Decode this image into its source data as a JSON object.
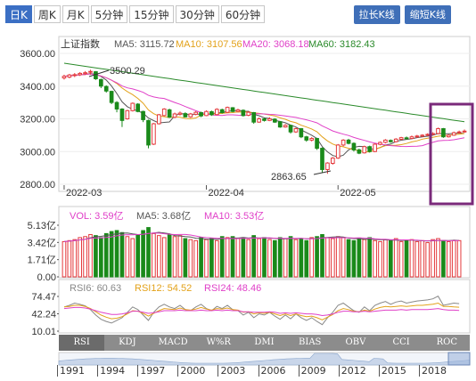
{
  "toolbar": {
    "periods": [
      "日K",
      "周K",
      "月K",
      "5分钟",
      "15分钟",
      "30分钟",
      "60分钟"
    ],
    "active_period": 0,
    "zoom_in_label": "拉长K线",
    "zoom_out_label": "缩短K线"
  },
  "legend": {
    "name": "上证指数",
    "ma5": "MA5: 3115.72",
    "ma10": "MA10: 3107.56",
    "ma20": "MA20: 3068.18",
    "ma60": "MA60: 3182.43"
  },
  "colors": {
    "up": "#e4393c",
    "down": "#1a8a1a",
    "ma5": "#555555",
    "ma10": "#e3a21a",
    "ma20": "#e040c8",
    "ma60": "#2a8a2a",
    "highlight": "#7a2a7a"
  },
  "chart_data": {
    "type": "candlestick",
    "x_ticks": [
      "2022-03",
      "2022-04",
      "2022-05"
    ],
    "y_ticks": [
      "3600.00",
      "3400.00",
      "3200.00",
      "3000.00",
      "2800.00"
    ],
    "ylim": [
      2800,
      3600
    ],
    "high_annotation": "3500.29",
    "low_annotation": "2863.65",
    "candles": [
      [
        3450,
        3460,
        3470,
        3440
      ],
      [
        3455,
        3468,
        3475,
        3448
      ],
      [
        3466,
        3470,
        3480,
        3455
      ],
      [
        3470,
        3478,
        3486,
        3462
      ],
      [
        3476,
        3482,
        3492,
        3468
      ],
      [
        3485,
        3490,
        3500,
        3470
      ],
      [
        3488,
        3445,
        3492,
        3438
      ],
      [
        3440,
        3400,
        3446,
        3388
      ],
      [
        3398,
        3370,
        3405,
        3360
      ],
      [
        3368,
        3300,
        3372,
        3290
      ],
      [
        3300,
        3260,
        3308,
        3240
      ],
      [
        3260,
        3190,
        3265,
        3150
      ],
      [
        3200,
        3250,
        3255,
        3195
      ],
      [
        3250,
        3295,
        3300,
        3245
      ],
      [
        3290,
        3245,
        3296,
        3240
      ],
      [
        3245,
        3195,
        3250,
        3180
      ],
      [
        3190,
        3040,
        3195,
        3020
      ],
      [
        3045,
        3170,
        3175,
        3040
      ],
      [
        3170,
        3225,
        3230,
        3165
      ],
      [
        3220,
        3260,
        3265,
        3215
      ],
      [
        3255,
        3210,
        3262,
        3205
      ],
      [
        3210,
        3230,
        3238,
        3204
      ],
      [
        3228,
        3235,
        3245,
        3220
      ],
      [
        3232,
        3212,
        3240,
        3208
      ],
      [
        3212,
        3230,
        3236,
        3206
      ],
      [
        3228,
        3240,
        3248,
        3222
      ],
      [
        3238,
        3218,
        3244,
        3210
      ],
      [
        3220,
        3245,
        3252,
        3216
      ],
      [
        3244,
        3225,
        3250,
        3218
      ],
      [
        3226,
        3258,
        3265,
        3222
      ],
      [
        3256,
        3238,
        3262,
        3232
      ],
      [
        3240,
        3270,
        3275,
        3235
      ],
      [
        3268,
        3245,
        3272,
        3240
      ],
      [
        3246,
        3255,
        3262,
        3240
      ],
      [
        3252,
        3220,
        3258,
        3214
      ],
      [
        3222,
        3240,
        3246,
        3216
      ],
      [
        3238,
        3180,
        3242,
        3170
      ],
      [
        3180,
        3200,
        3208,
        3176
      ],
      [
        3200,
        3190,
        3206,
        3184
      ],
      [
        3190,
        3200,
        3210,
        3186
      ],
      [
        3198,
        3180,
        3204,
        3175
      ],
      [
        3182,
        3150,
        3186,
        3145
      ],
      [
        3150,
        3160,
        3168,
        3146
      ],
      [
        3160,
        3120,
        3164,
        3110
      ],
      [
        3120,
        3140,
        3146,
        3114
      ],
      [
        3140,
        3090,
        3144,
        3082
      ],
      [
        3090,
        3070,
        3096,
        3060
      ],
      [
        3070,
        3080,
        3088,
        3062
      ],
      [
        3080,
        3020,
        3084,
        3010
      ],
      [
        3020,
        2890,
        3025,
        2870
      ],
      [
        2890,
        2930,
        2935,
        2864
      ],
      [
        2928,
        2960,
        2966,
        2920
      ],
      [
        2960,
        3040,
        3046,
        2955
      ],
      [
        3040,
        3070,
        3076,
        3032
      ],
      [
        3070,
        3050,
        3078,
        3044
      ],
      [
        3050,
        3010,
        3056,
        3000
      ],
      [
        3010,
        2990,
        3018,
        2984
      ],
      [
        2992,
        3030,
        3036,
        2988
      ],
      [
        3030,
        3000,
        3036,
        2994
      ],
      [
        3000,
        3045,
        3050,
        2996
      ],
      [
        3044,
        3056,
        3062,
        3038
      ],
      [
        3056,
        3070,
        3076,
        3050
      ],
      [
        3068,
        3060,
        3074,
        3054
      ],
      [
        3060,
        3076,
        3082,
        3056
      ],
      [
        3075,
        3085,
        3090,
        3068
      ],
      [
        3084,
        3080,
        3092,
        3076
      ],
      [
        3080,
        3090,
        3098,
        3076
      ],
      [
        3090,
        3095,
        3102,
        3084
      ],
      [
        3094,
        3100,
        3106,
        3090
      ],
      [
        3100,
        3105,
        3112,
        3095
      ],
      [
        3104,
        3110,
        3118,
        3100
      ],
      [
        3110,
        3140,
        3146,
        3106
      ],
      [
        3140,
        3090,
        3144,
        3084
      ],
      [
        3090,
        3100,
        3106,
        3086
      ],
      [
        3100,
        3115,
        3122,
        3096
      ],
      [
        3115,
        3120,
        3128,
        3110
      ],
      [
        3120,
        3125,
        3135,
        3115
      ]
    ],
    "volume": {
      "legend": {
        "vol": "VOL: 3.59亿",
        "ma5": "MA5: 3.68亿",
        "ma10": "MA10: 3.53亿"
      },
      "y_ticks": [
        "5.13亿",
        "3.42亿",
        "1.71亿",
        "0.00"
      ],
      "ylim": [
        0,
        5.13
      ],
      "values": [
        3.5,
        3.6,
        3.7,
        3.9,
        4.0,
        4.2,
        4.1,
        3.9,
        4.3,
        4.5,
        4.6,
        4.4,
        4.0,
        3.8,
        4.2,
        4.6,
        4.9,
        4.3,
        4.1,
        3.9,
        4.2,
        4.0,
        4.1,
        3.8,
        3.7,
        3.6,
        3.9,
        3.7,
        3.8,
        3.6,
        4.0,
        3.9,
        4.0,
        3.8,
        3.9,
        3.7,
        4.1,
        3.8,
        3.9,
        3.7,
        3.6,
        3.9,
        3.8,
        4.0,
        3.7,
        3.8,
        3.6,
        3.9,
        4.0,
        4.2,
        3.9,
        3.8,
        4.0,
        3.9,
        3.7,
        3.6,
        3.8,
        3.7,
        3.9,
        3.6,
        3.5,
        3.7,
        3.6,
        3.8,
        3.5,
        3.6,
        3.7,
        3.5,
        3.6,
        3.4,
        3.7,
        3.8,
        3.6,
        3.5,
        3.6,
        3.6
      ]
    },
    "rsi": {
      "legend": {
        "rsi6": "RSI6: 60.63",
        "rsi12": "RSI12: 54.52",
        "rsi24": "RSI24: 48.46"
      },
      "y_ticks": [
        "74.47",
        "42.24",
        "10.01"
      ],
      "ylim": [
        10.01,
        74.47
      ],
      "rsi6": [
        55,
        58,
        62,
        60,
        57,
        50,
        40,
        32,
        28,
        25,
        30,
        35,
        45,
        55,
        50,
        40,
        30,
        45,
        55,
        60,
        55,
        52,
        58,
        50,
        48,
        55,
        60,
        52,
        48,
        56,
        52,
        58,
        50,
        48,
        40,
        45,
        35,
        42,
        40,
        45,
        38,
        32,
        40,
        33,
        42,
        35,
        30,
        35,
        28,
        22,
        35,
        45,
        58,
        62,
        55,
        48,
        45,
        55,
        48,
        58,
        62,
        65,
        60,
        64,
        66,
        62,
        64,
        66,
        67,
        68,
        70,
        75,
        58,
        60,
        62,
        61
      ],
      "rsi12": [
        55,
        56,
        58,
        58,
        56,
        52,
        46,
        40,
        36,
        33,
        34,
        37,
        42,
        48,
        47,
        43,
        38,
        43,
        48,
        52,
        51,
        50,
        53,
        50,
        49,
        51,
        54,
        51,
        49,
        52,
        51,
        53,
        50,
        49,
        45,
        46,
        42,
        44,
        43,
        45,
        42,
        39,
        42,
        39,
        42,
        39,
        37,
        38,
        35,
        31,
        36,
        41,
        48,
        52,
        50,
        47,
        46,
        49,
        47,
        51,
        54,
        56,
        55,
        56,
        57,
        56,
        57,
        58,
        58,
        59,
        60,
        62,
        56,
        56,
        55,
        54.5
      ],
      "rsi24": [
        52,
        53,
        54,
        54,
        53,
        51,
        48,
        45,
        43,
        41,
        41,
        42,
        44,
        47,
        47,
        45,
        43,
        44,
        46,
        48,
        48,
        48,
        49,
        48,
        48,
        48,
        49,
        48,
        48,
        49,
        48,
        49,
        48,
        48,
        46,
        46,
        45,
        45,
        45,
        46,
        45,
        43,
        44,
        43,
        44,
        43,
        42,
        42,
        41,
        39,
        40,
        42,
        45,
        47,
        47,
        46,
        46,
        47,
        46,
        47,
        48,
        49,
        49,
        49,
        50,
        49,
        50,
        50,
        50,
        50,
        51,
        52,
        50,
        49,
        49,
        48.5
      ]
    },
    "indicators": [
      "RSI",
      "KDJ",
      "MACD",
      "W%R",
      "DMI",
      "BIAS",
      "OBV",
      "CCI",
      "ROC"
    ],
    "active_indicator": 0,
    "timeline_years": [
      "1991",
      "1994",
      "1997",
      "2000",
      "2003",
      "2006",
      "2009",
      "2012",
      "2015",
      "2018"
    ]
  }
}
